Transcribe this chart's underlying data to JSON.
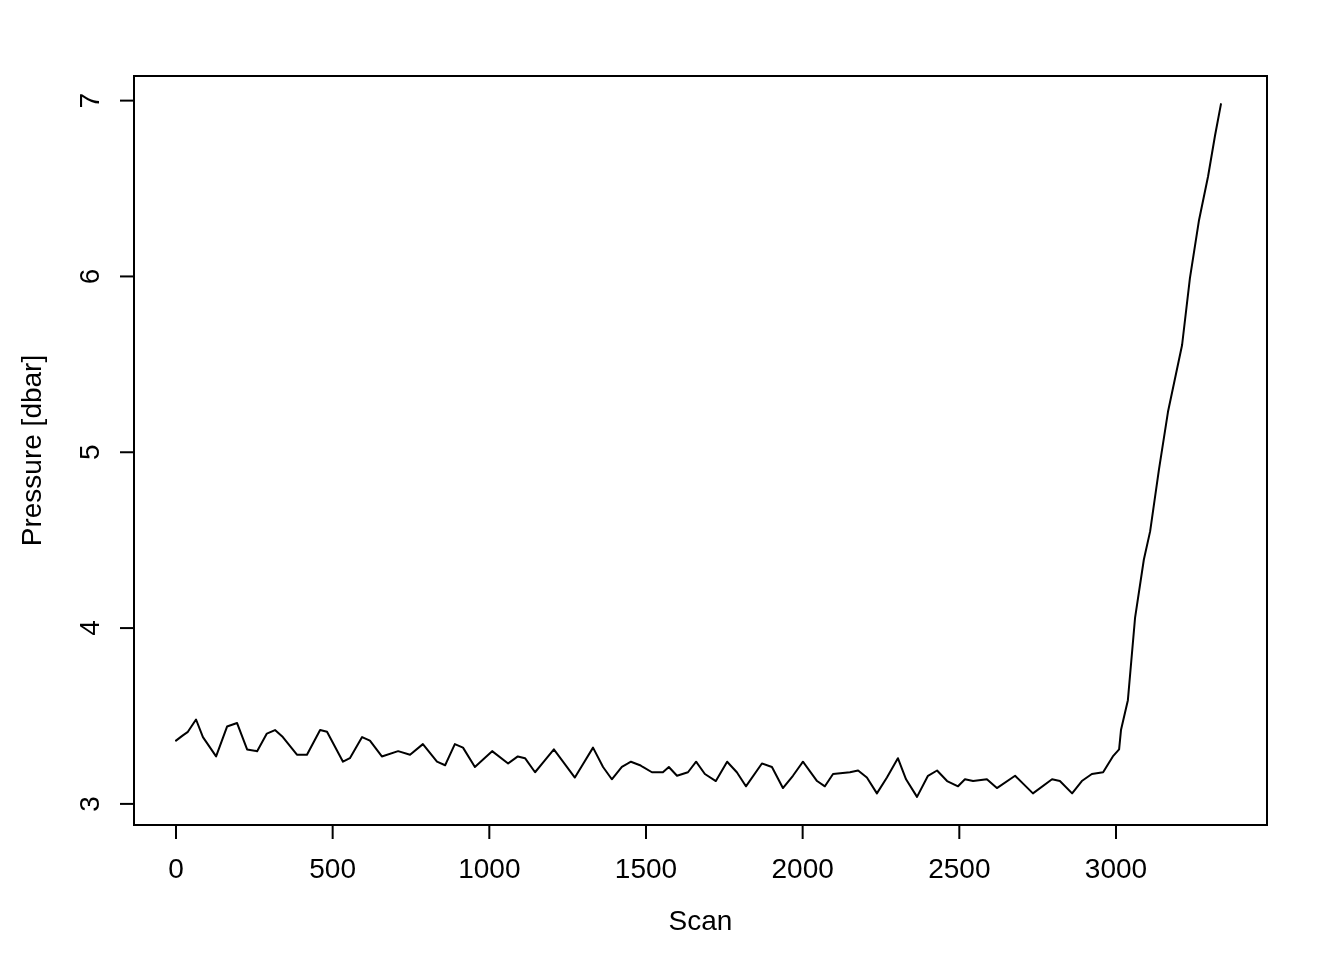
{
  "chart_data": {
    "type": "line",
    "xlabel": "Scan",
    "ylabel": "Pressure [dbar]",
    "color": "#000000",
    "marker": "none",
    "x": [
      0,
      22,
      38,
      64,
      86,
      128,
      163,
      195,
      227,
      259,
      290,
      316,
      341,
      386,
      418,
      460,
      482,
      533,
      555,
      594,
      619,
      657,
      709,
      747,
      788,
      833,
      859,
      890,
      916,
      954,
      1009,
      1060,
      1091,
      1114,
      1146,
      1206,
      1273,
      1331,
      1363,
      1391,
      1423,
      1452,
      1481,
      1490,
      1519,
      1554,
      1573,
      1599,
      1634,
      1660,
      1688,
      1723,
      1759,
      1790,
      1819,
      1870,
      1902,
      1937,
      1969,
      2001,
      2046,
      2071,
      2097,
      2151,
      2177,
      2205,
      2237,
      2269,
      2304,
      2330,
      2365,
      2400,
      2429,
      2461,
      2496,
      2518,
      2544,
      2588,
      2620,
      2678,
      2735,
      2796,
      2821,
      2860,
      2891,
      2923,
      2959,
      2990,
      3010,
      3016,
      3038,
      3061,
      3089,
      3109,
      3137,
      3166,
      3211,
      3236,
      3265,
      3294,
      3316,
      3335
    ],
    "values": [
      3.36,
      3.39,
      3.41,
      3.48,
      3.38,
      3.27,
      3.44,
      3.46,
      3.31,
      3.3,
      3.4,
      3.42,
      3.38,
      3.28,
      3.28,
      3.42,
      3.41,
      3.24,
      3.26,
      3.38,
      3.36,
      3.27,
      3.3,
      3.28,
      3.34,
      3.24,
      3.22,
      3.34,
      3.32,
      3.21,
      3.3,
      3.23,
      3.27,
      3.26,
      3.18,
      3.31,
      3.15,
      3.32,
      3.21,
      3.14,
      3.21,
      3.24,
      3.22,
      3.21,
      3.18,
      3.18,
      3.21,
      3.16,
      3.18,
      3.24,
      3.17,
      3.13,
      3.24,
      3.18,
      3.1,
      3.23,
      3.21,
      3.09,
      3.16,
      3.24,
      3.13,
      3.1,
      3.17,
      3.18,
      3.19,
      3.15,
      3.06,
      3.15,
      3.26,
      3.14,
      3.04,
      3.16,
      3.19,
      3.13,
      3.1,
      3.14,
      3.13,
      3.14,
      3.09,
      3.16,
      3.06,
      3.14,
      3.13,
      3.06,
      3.13,
      3.17,
      3.18,
      3.27,
      3.31,
      3.42,
      3.59,
      4.06,
      4.39,
      4.55,
      4.9,
      5.23,
      5.61,
      5.99,
      6.32,
      6.57,
      6.8,
      6.98
    ],
    "xlim": [
      -134,
      3482
    ],
    "ylim": [
      2.88,
      7.14
    ],
    "xticks": [
      0,
      500,
      1000,
      1500,
      2000,
      2500,
      3000
    ],
    "yticks": [
      3,
      4,
      5,
      6,
      7
    ]
  }
}
